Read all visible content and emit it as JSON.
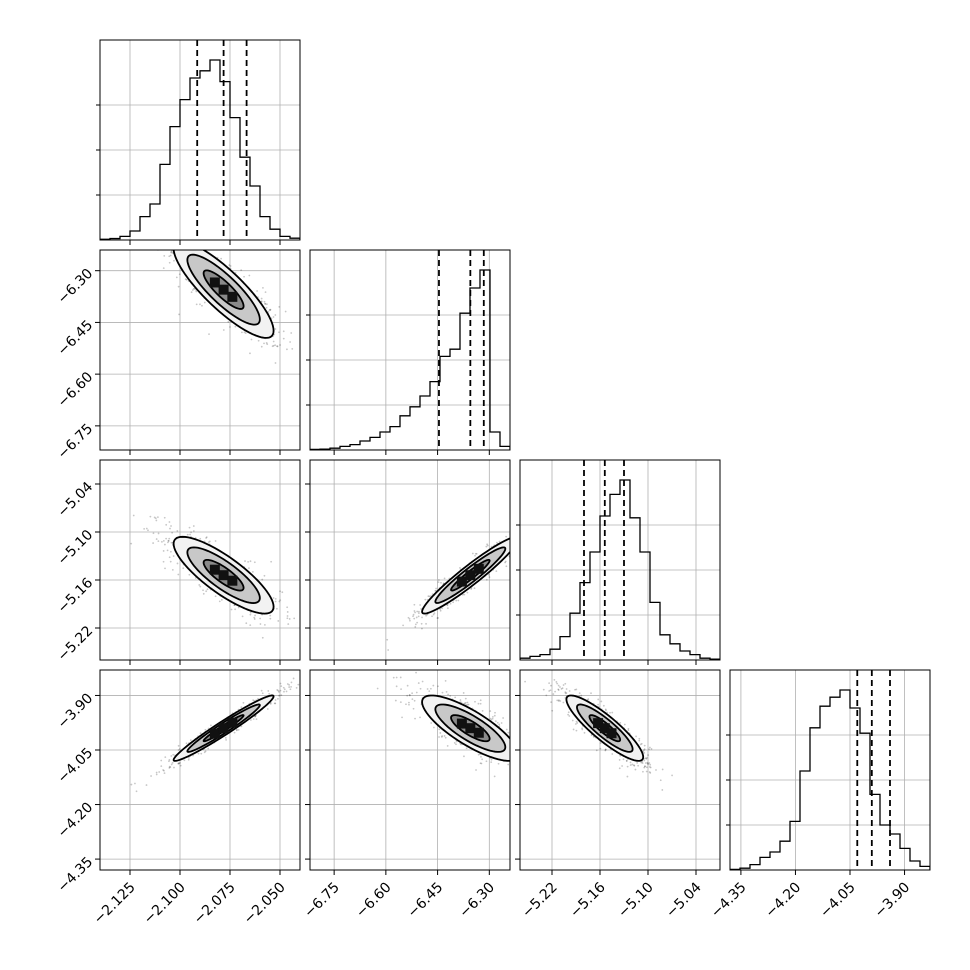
{
  "chart_data": {
    "type": "corner",
    "title": "",
    "parameters": [
      "",
      "",
      "",
      ""
    ],
    "grid": true,
    "ranges": [
      [
        -2.14,
        -2.04
      ],
      [
        -6.82,
        -6.24
      ],
      [
        -5.26,
        -5.01
      ],
      [
        -4.38,
        -3.83
      ]
    ],
    "ticks": [
      [
        "−2.125",
        "−2.100",
        "−2.075",
        "−2.050"
      ],
      [
        "−6.75",
        "−6.60",
        "−6.45",
        "−6.30"
      ],
      [
        "−5.22",
        "−5.16",
        "−5.10",
        "−5.04"
      ],
      [
        "−4.35",
        "−4.20",
        "−4.05",
        "−3.90"
      ]
    ],
    "tick_values": [
      [
        -2.125,
        -2.1,
        -2.075,
        -2.05
      ],
      [
        -6.75,
        -6.6,
        -6.45,
        -6.3
      ],
      [
        -5.22,
        -5.16,
        -5.1,
        -5.04
      ],
      [
        -4.35,
        -4.2,
        -4.05,
        -3.9
      ]
    ],
    "quantiles": [
      [
        -2.0914,
        -2.0782,
        -2.0667
      ],
      [
        -6.446,
        -6.355,
        -6.316
      ],
      [
        -5.18,
        -5.154,
        -5.13
      ],
      [
        -4.03,
        -3.99,
        -3.94
      ]
    ],
    "histograms": [
      [
        0.004,
        0.008,
        0.02,
        0.05,
        0.13,
        0.2,
        0.42,
        0.63,
        0.78,
        0.9,
        0.94,
        1.0,
        0.88,
        0.68,
        0.46,
        0.3,
        0.13,
        0.06,
        0.02,
        0.01
      ],
      [
        0.003,
        0.005,
        0.01,
        0.02,
        0.03,
        0.05,
        0.07,
        0.1,
        0.13,
        0.19,
        0.24,
        0.3,
        0.38,
        0.52,
        0.56,
        0.76,
        0.9,
        1.0,
        0.1,
        0.02
      ],
      [
        0.01,
        0.02,
        0.03,
        0.06,
        0.13,
        0.26,
        0.43,
        0.6,
        0.8,
        0.92,
        1.0,
        0.79,
        0.6,
        0.32,
        0.14,
        0.09,
        0.05,
        0.03,
        0.01,
        0.005
      ],
      [
        0.003,
        0.01,
        0.03,
        0.07,
        0.1,
        0.16,
        0.27,
        0.55,
        0.79,
        0.91,
        0.96,
        1.0,
        0.9,
        0.76,
        0.42,
        0.25,
        0.2,
        0.12,
        0.05,
        0.02
      ]
    ],
    "correlations": [
      [
        1.0,
        -0.85,
        -0.82,
        0.97
      ],
      [
        -0.85,
        1.0,
        0.95,
        -0.8
      ],
      [
        -0.82,
        0.95,
        1.0,
        -0.88
      ],
      [
        0.97,
        -0.8,
        -0.88,
        1.0
      ]
    ],
    "medians": [
      -2.0782,
      -6.355,
      -5.154,
      -3.99
    ],
    "sigmas": [
      0.0125,
      0.07,
      0.024,
      0.045
    ]
  }
}
